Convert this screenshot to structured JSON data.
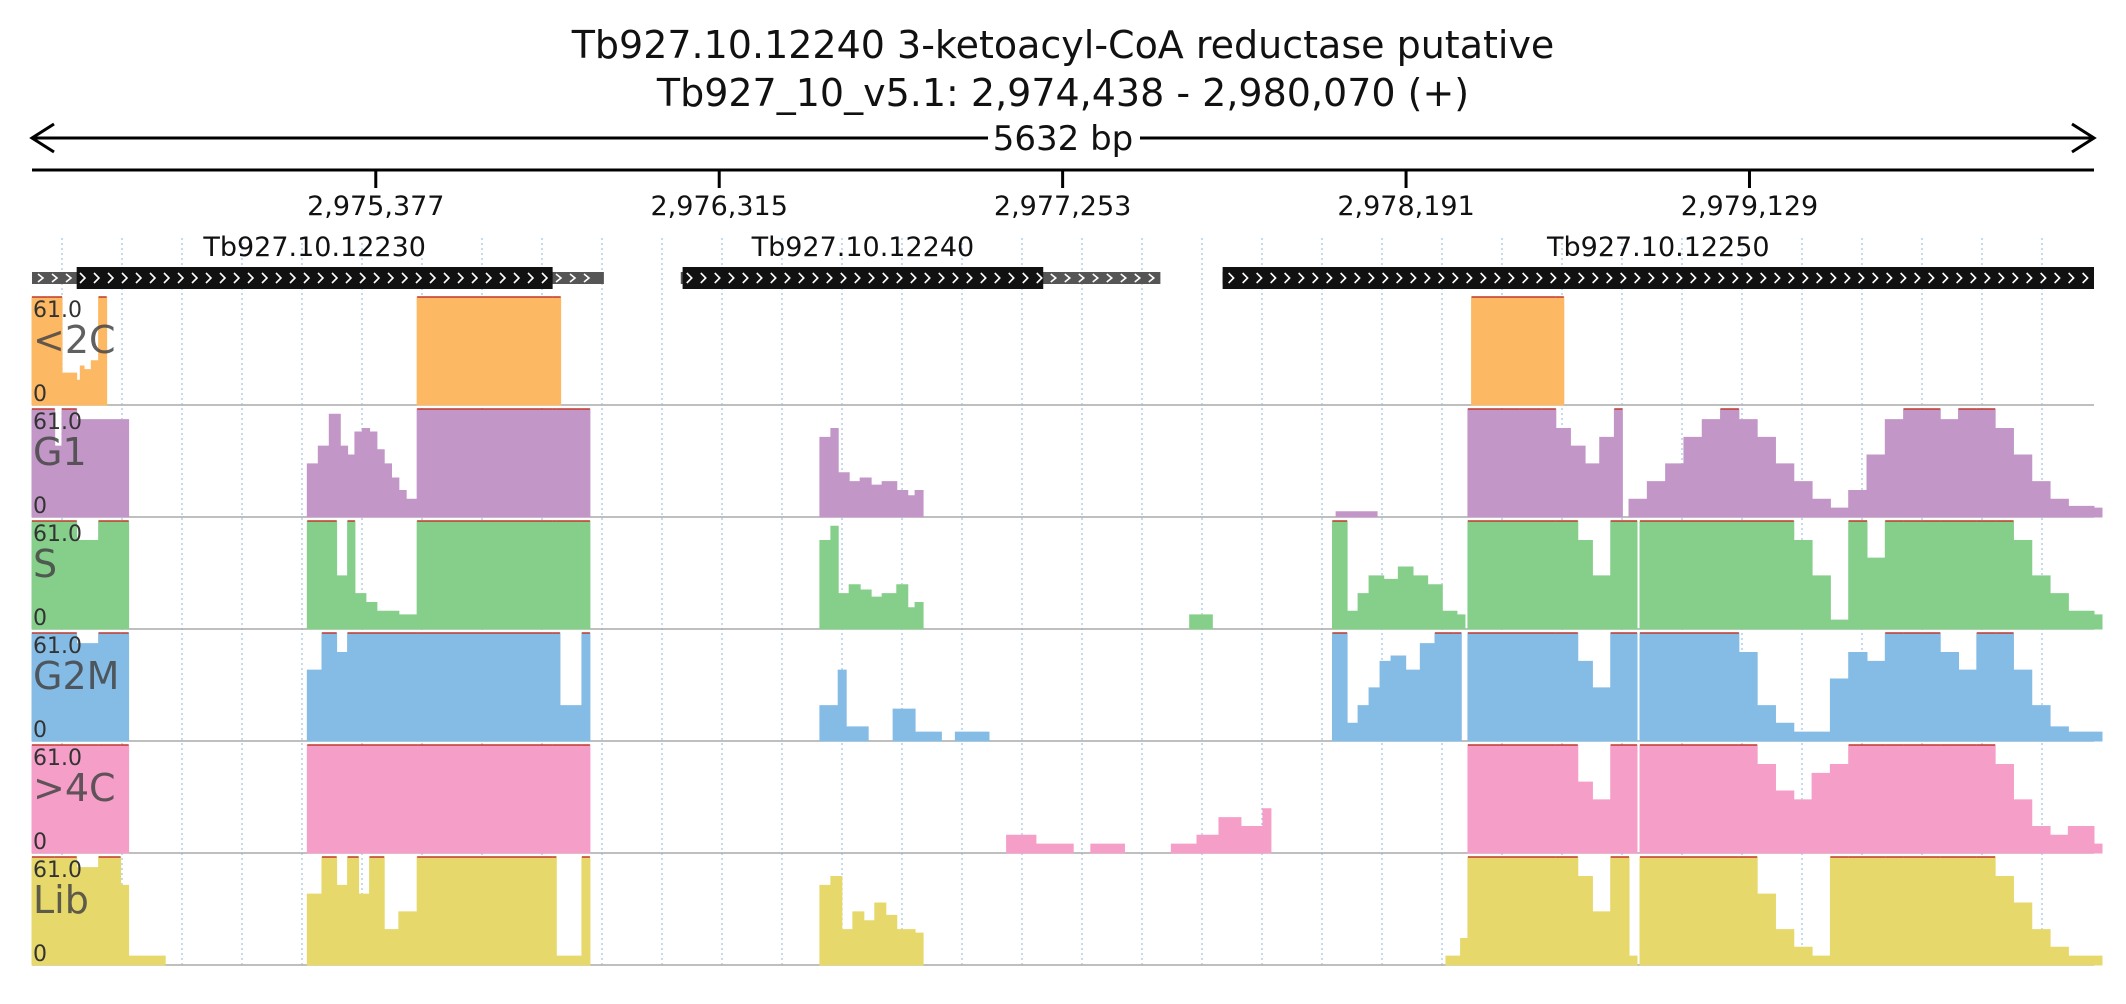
{
  "header": {
    "title": "Tb927.10.12240  3-ketoacyl-CoA reductase  putative",
    "subtitle": "Tb927_10_v5.1: 2,974,438 - 2,980,070 (+)",
    "span_label": "5632 bp"
  },
  "chart_data": {
    "type": "area",
    "region": {
      "chromosome": "Tb927_10_v5.1",
      "start": 2974438,
      "end": 2980070,
      "strand": "+"
    },
    "x_ticks": [
      2975377,
      2976315,
      2977253,
      2978191,
      2979129
    ],
    "x_tick_labels": [
      "2,975,377",
      "2,976,315",
      "2,977,253",
      "2,978,191",
      "2,979,129"
    ],
    "genes": [
      {
        "name": "Tb927.10.12230",
        "utr_start": 2974438,
        "cds_start": 2974560,
        "cds_end": 2975860,
        "utr_end": 2976000
      },
      {
        "name": "Tb927.10.12240",
        "utr_start": 2976210,
        "cds_start": 2976215,
        "cds_end": 2977200,
        "utr_end": 2977520
      },
      {
        "name": "Tb927.10.12250",
        "utr_start": 2977690,
        "cds_start": 2977690,
        "cds_end": 2980070,
        "utr_end": 2980070
      }
    ],
    "y_max_label": "61.0",
    "y_min_label": "0",
    "ylim": [
      0,
      61
    ],
    "tracks": [
      {
        "name": "<2C",
        "color": "#fdb863",
        "segments": [
          {
            "x": [
              2974438,
              2974480,
              2974520,
              2974560,
              2974570,
              2974580,
              2974600,
              2974620
            ],
            "y": [
              61,
              61,
              18,
              14,
              22,
              20,
              25,
              61
            ]
          },
          {
            "x": [
              2975490,
              2975860
            ],
            "y": [
              61,
              61
            ]
          },
          {
            "x": [
              2978370,
              2978600
            ],
            "y": [
              61,
              61
            ]
          }
        ]
      },
      {
        "name": "G1",
        "color": "#c297c8",
        "segments": [
          {
            "x": [
              2974438,
              2974480,
              2974500,
              2974520,
              2974560,
              2974620,
              2974680
            ],
            "y": [
              61,
              61,
              40,
              61,
              55,
              55,
              55
            ]
          },
          {
            "x": [
              2975190,
              2975220,
              2975250,
              2975280,
              2975300,
              2975320,
              2975340,
              2975360,
              2975380,
              2975400,
              2975420,
              2975440,
              2975460,
              2975490,
              2975860,
              2975870,
              2975940
            ],
            "y": [
              30,
              40,
              58,
              40,
              35,
              48,
              50,
              48,
              38,
              30,
              22,
              15,
              10,
              61,
              61,
              61,
              61
            ]
          },
          {
            "x": [
              2976590,
              2976620,
              2976640,
              2976670,
              2976700,
              2976730,
              2976760,
              2976800,
              2976830,
              2976850
            ],
            "y": [
              45,
              50,
              25,
              20,
              22,
              18,
              20,
              15,
              12,
              15
            ]
          },
          {
            "x": [
              2978000,
              2978090
            ],
            "y": [
              3,
              3
            ]
          },
          {
            "x": [
              2978360,
              2978500,
              2978560,
              2978600,
              2978640,
              2978680,
              2978720,
              2978760
            ],
            "y": [
              61,
              61,
              61,
              50,
              40,
              30,
              45,
              61
            ]
          },
          {
            "x": [
              2978800,
              2978850,
              2978900,
              2978950,
              2979000,
              2979050,
              2979100,
              2979150,
              2979200,
              2979250,
              2979300,
              2979350,
              2979400
            ],
            "y": [
              10,
              20,
              30,
              45,
              55,
              61,
              55,
              45,
              30,
              20,
              10,
              5,
              5
            ]
          },
          {
            "x": [
              2979400,
              2979450,
              2979500,
              2979550,
              2979600,
              2979650,
              2979700,
              2979750,
              2979800,
              2979850,
              2979900,
              2979950,
              2980000,
              2980070
            ],
            "y": [
              15,
              35,
              55,
              61,
              61,
              55,
              61,
              61,
              50,
              35,
              20,
              10,
              6,
              5
            ]
          }
        ]
      },
      {
        "name": "S",
        "color": "#86cf8b",
        "segments": [
          {
            "x": [
              2974438,
              2974500,
              2974560,
              2974620,
              2974680
            ],
            "y": [
              61,
              61,
              50,
              61,
              61
            ]
          },
          {
            "x": [
              2975190,
              2975230,
              2975270,
              2975300,
              2975320,
              2975350,
              2975380,
              2975410,
              2975440,
              2975470,
              2975490,
              2975860,
              2975870,
              2975940
            ],
            "y": [
              61,
              61,
              30,
              61,
              20,
              15,
              10,
              10,
              8,
              8,
              61,
              61,
              61,
              61
            ]
          },
          {
            "x": [
              2976590,
              2976620,
              2976640,
              2976670,
              2976700,
              2976730,
              2976760,
              2976800,
              2976830,
              2976850
            ],
            "y": [
              50,
              58,
              20,
              25,
              22,
              18,
              20,
              25,
              12,
              15
            ]
          },
          {
            "x": [
              2977600,
              2977640
            ],
            "y": [
              8,
              8
            ]
          },
          {
            "x": [
              2977990,
              2978030,
              2978060,
              2978090,
              2978130,
              2978170,
              2978210,
              2978250,
              2978290,
              2978330
            ],
            "y": [
              61,
              10,
              20,
              30,
              28,
              35,
              30,
              25,
              10,
              8
            ]
          },
          {
            "x": [
              2978360,
              2978600,
              2978660,
              2978700,
              2978750,
              2978800
            ],
            "y": [
              61,
              61,
              50,
              30,
              61,
              61
            ]
          },
          {
            "x": [
              2978830,
              2979200,
              2979250,
              2979300,
              2979350,
              2979400,
              2979450,
              2979500,
              2979550,
              2979600,
              2979650,
              2979700,
              2979750,
              2979800,
              2979850,
              2979900,
              2979950,
              2980000,
              2980070
            ],
            "y": [
              61,
              61,
              50,
              30,
              5,
              61,
              40,
              61,
              61,
              61,
              61,
              61,
              61,
              61,
              50,
              30,
              20,
              10,
              8
            ]
          }
        ]
      },
      {
        "name": "G2M",
        "color": "#85bce6",
        "segments": [
          {
            "x": [
              2974438,
              2974500,
              2974560,
              2974620,
              2974680
            ],
            "y": [
              61,
              61,
              55,
              61,
              61
            ]
          },
          {
            "x": [
              2975190,
              2975230,
              2975270,
              2975300,
              2975330,
              2975490,
              2975860,
              2975880,
              2975940
            ],
            "y": [
              40,
              61,
              50,
              61,
              61,
              61,
              61,
              20,
              61
            ]
          },
          {
            "x": [
              2976590,
              2976640
            ],
            "y": [
              20,
              40
            ]
          },
          {
            "x": [
              2976640,
              2976700
            ],
            "y": [
              8,
              8
            ]
          },
          {
            "x": [
              2976790,
              2976850,
              2976900
            ],
            "y": [
              18,
              5,
              5
            ]
          },
          {
            "x": [
              2976960,
              2977030
            ],
            "y": [
              5,
              5
            ]
          },
          {
            "x": [
              2977990,
              2978030,
              2978060,
              2978090,
              2978120,
              2978150,
              2978190,
              2978230,
              2978270,
              2978320
            ],
            "y": [
              61,
              10,
              20,
              30,
              45,
              48,
              40,
              55,
              61,
              61
            ]
          },
          {
            "x": [
              2978360,
              2978600,
              2978660,
              2978700,
              2978750,
              2978800
            ],
            "y": [
              61,
              61,
              45,
              30,
              61,
              61
            ]
          },
          {
            "x": [
              2978830,
              2979050,
              2979100,
              2979150,
              2979200,
              2979250,
              2979300,
              2979350,
              2979400,
              2979450,
              2979500,
              2979550,
              2979600,
              2979650,
              2979700,
              2979750,
              2979800,
              2979850,
              2979900,
              2979950,
              2980000,
              2980070
            ],
            "y": [
              61,
              61,
              50,
              20,
              10,
              5,
              5,
              35,
              50,
              45,
              61,
              61,
              61,
              50,
              40,
              61,
              61,
              40,
              20,
              8,
              5,
              5
            ]
          }
        ]
      },
      {
        "name": ">4C",
        "color": "#f59ec8",
        "segments": [
          {
            "x": [
              2974438,
              2974500,
              2974560,
              2974620,
              2974680
            ],
            "y": [
              61,
              61,
              61,
              61,
              61
            ]
          },
          {
            "x": [
              2975190,
              2975490,
              2975860,
              2975940
            ],
            "y": [
              61,
              61,
              61,
              61
            ]
          },
          {
            "x": [
              2977100,
              2977180,
              2977260
            ],
            "y": [
              10,
              5,
              5
            ]
          },
          {
            "x": [
              2977330,
              2977400
            ],
            "y": [
              5,
              5
            ]
          },
          {
            "x": [
              2977550,
              2977620,
              2977680,
              2977740,
              2977800
            ],
            "y": [
              5,
              10,
              20,
              15,
              25
            ]
          },
          {
            "x": [
              2978360,
              2978600,
              2978660,
              2978700,
              2978750,
              2978800
            ],
            "y": [
              61,
              61,
              40,
              30,
              61,
              61
            ]
          },
          {
            "x": [
              2978830,
              2979100,
              2979150,
              2979200,
              2979250,
              2979300,
              2979350,
              2979400,
              2979450,
              2979500,
              2979550,
              2979600,
              2979650,
              2979700,
              2979750,
              2979800,
              2979850,
              2979900,
              2979950,
              2980000,
              2980070
            ],
            "y": [
              61,
              61,
              50,
              35,
              30,
              45,
              50,
              61,
              61,
              61,
              61,
              61,
              61,
              61,
              61,
              50,
              30,
              15,
              10,
              15,
              5
            ]
          }
        ]
      },
      {
        "name": "Lib",
        "color": "#e6d86b",
        "segments": [
          {
            "x": [
              2974438,
              2974500,
              2974560,
              2974620,
              2974680
            ],
            "y": [
              61,
              61,
              55,
              61,
              45
            ]
          },
          {
            "x": [
              2974700,
              2974780
            ],
            "y": [
              5,
              5
            ]
          },
          {
            "x": [
              2975190,
              2975230,
              2975270,
              2975300,
              2975330,
              2975360,
              2975400,
              2975440,
              2975490,
              2975860,
              2975870,
              2975940
            ],
            "y": [
              40,
              61,
              45,
              61,
              40,
              61,
              20,
              30,
              61,
              61,
              5,
              61
            ]
          },
          {
            "x": [
              2976590,
              2976620,
              2976650,
              2976680,
              2976710,
              2976740,
              2976770,
              2976800,
              2976830,
              2976850
            ],
            "y": [
              45,
              50,
              20,
              30,
              25,
              35,
              28,
              20,
              20,
              18
            ]
          },
          {
            "x": [
              2978300,
              2978340,
              2978360,
              2978600,
              2978660,
              2978700,
              2978750,
              2978800
            ],
            "y": [
              5,
              15,
              61,
              61,
              50,
              30,
              61,
              5
            ]
          },
          {
            "x": [
              2978830,
              2979100,
              2979150,
              2979200,
              2979250,
              2979300,
              2979350,
              2979400,
              2979450,
              2979500,
              2979550,
              2979600,
              2979650,
              2979700,
              2979750,
              2979800,
              2979850,
              2979900,
              2979950,
              2980000,
              2980070
            ],
            "y": [
              61,
              61,
              40,
              20,
              10,
              5,
              61,
              61,
              61,
              61,
              61,
              61,
              61,
              61,
              61,
              50,
              35,
              20,
              10,
              5,
              5
            ]
          }
        ]
      }
    ]
  }
}
